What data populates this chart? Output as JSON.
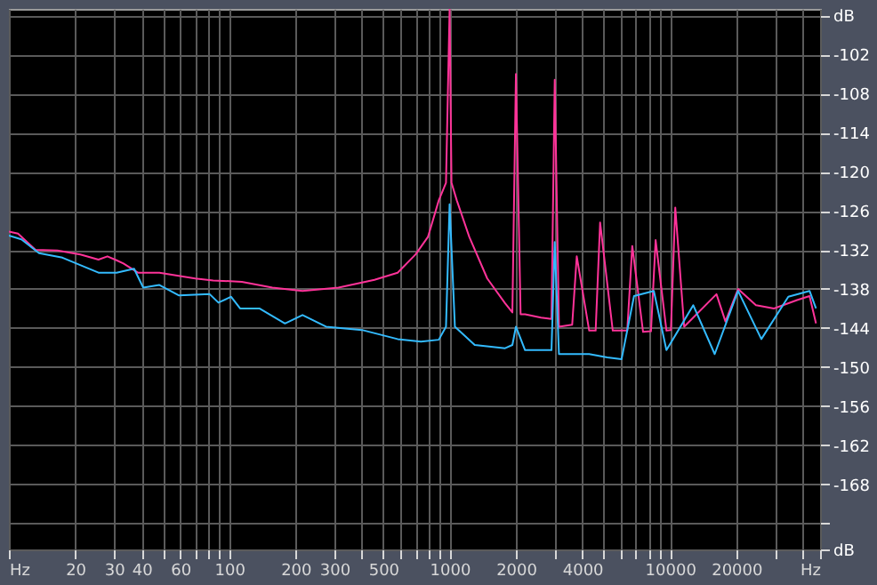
{
  "chart_data": {
    "type": "line",
    "log": "x",
    "grid": true,
    "marker": "none",
    "line_style": "solid",
    "xlim": [
      10,
      48000
    ],
    "ylim": [
      -178,
      -95
    ],
    "xticks": [
      {
        "value": 10,
        "label": "Hz"
      },
      20,
      30,
      40,
      {
        "value": 50,
        "label": null
      },
      60,
      {
        "value": 70,
        "label": null
      },
      {
        "value": 80,
        "label": null
      },
      {
        "value": 90,
        "label": null
      },
      100,
      200,
      300,
      {
        "value": 400,
        "label": null
      },
      500,
      {
        "value": 600,
        "label": null
      },
      {
        "value": 700,
        "label": null
      },
      {
        "value": 800,
        "label": null
      },
      {
        "value": 900,
        "label": null
      },
      1000,
      2000,
      {
        "value": 3000,
        "label": null
      },
      4000,
      {
        "value": 5000,
        "label": null
      },
      {
        "value": 6000,
        "label": null
      },
      {
        "value": 7000,
        "label": null
      },
      {
        "value": 8000,
        "label": null
      },
      {
        "value": 9000,
        "label": null
      },
      10000,
      20000,
      {
        "value": 30000,
        "label": null
      },
      {
        "value": 40000,
        "label": null
      },
      {
        "value": 48000,
        "label": "Hz"
      }
    ],
    "yticks": [
      {
        "value": -96,
        "label": "dB"
      },
      -102,
      -108,
      -114,
      -120,
      -126,
      -132,
      -138,
      -144,
      -150,
      -156,
      -162,
      -168,
      {
        "value": -174,
        "label": null
      },
      {
        "value": -178,
        "label": "dB"
      }
    ],
    "series": [
      {
        "color": "#ff3399",
        "x": [
          10,
          11,
          13.2,
          16.6,
          21.1,
          25.5,
          28,
          30.8,
          33.1,
          38.5,
          48.2,
          61.5,
          70.1,
          84.5,
          114,
          157,
          215,
          313,
          456,
          581,
          701,
          798,
          893,
          963,
          1000,
          1020,
          1078,
          1228,
          1482,
          1786,
          1927,
          2000,
          2100,
          2200,
          2600,
          2900,
          3000,
          3135,
          3600,
          3776,
          4300,
          4600,
          4820,
          5500,
          6400,
          6745,
          7550,
          8200,
          8610,
          9640,
          10100,
          10570,
          11600,
          16260,
          17860,
          20370,
          24550,
          29650,
          37760,
          43000,
          46000
        ],
        "values": [
          -129.2,
          -129.5,
          -132.0,
          -132.1,
          -132.7,
          -133.5,
          -133.0,
          -133.6,
          -134.1,
          -135.5,
          -135.5,
          -136.1,
          -136.4,
          -136.7,
          -136.9,
          -137.8,
          -138.3,
          -137.8,
          -136.6,
          -135.5,
          -132.7,
          -130.0,
          -124.4,
          -121.7,
          -95,
          -121.7,
          -124.4,
          -130.0,
          -136.4,
          -140.2,
          -141.6,
          -105.0,
          -141.9,
          -141.9,
          -142.4,
          -142.6,
          -105.9,
          -143.8,
          -143.5,
          -133.0,
          -144.4,
          -144.4,
          -127.8,
          -144.4,
          -144.4,
          -131.4,
          -144.6,
          -144.5,
          -130.5,
          -144.4,
          -144.3,
          -125.5,
          -143.8,
          -138.8,
          -143.0,
          -138.0,
          -140.5,
          -141.0,
          -139.7,
          -139.1,
          -143.3
        ]
      },
      {
        "color": "#33bbff",
        "x": [
          10,
          11.4,
          13.7,
          17.5,
          25.5,
          30.8,
          37,
          40.7,
          48.2,
          59.2,
          81.5,
          89.3,
          102,
          112,
          137,
          179,
          215,
          275,
          400,
          581,
          741,
          893,
          963,
          1000,
          1057,
          1300,
          1786,
          1927,
          2000,
          2200,
          2900,
          3000,
          3135,
          4300,
          5190,
          6030,
          6870,
          8450,
          9640,
          12760,
          15960,
          20370,
          25990,
          34450,
          43000,
          46000
        ],
        "values": [
          -129.8,
          -130.4,
          -132.5,
          -133.2,
          -135.5,
          -135.5,
          -134.9,
          -137.8,
          -137.4,
          -139.0,
          -138.8,
          -140.1,
          -139.2,
          -141.0,
          -141.0,
          -143.3,
          -142.0,
          -143.8,
          -144.3,
          -145.7,
          -146.1,
          -145.8,
          -143.8,
          -125.0,
          -143.8,
          -146.6,
          -147.1,
          -146.6,
          -143.8,
          -147.4,
          -147.4,
          -130.8,
          -148.0,
          -148.0,
          -148.5,
          -148.8,
          -139.1,
          -138.3,
          -147.4,
          -140.5,
          -148.0,
          -138.3,
          -145.7,
          -139.2,
          -138.3,
          -141.0
        ]
      }
    ]
  }
}
